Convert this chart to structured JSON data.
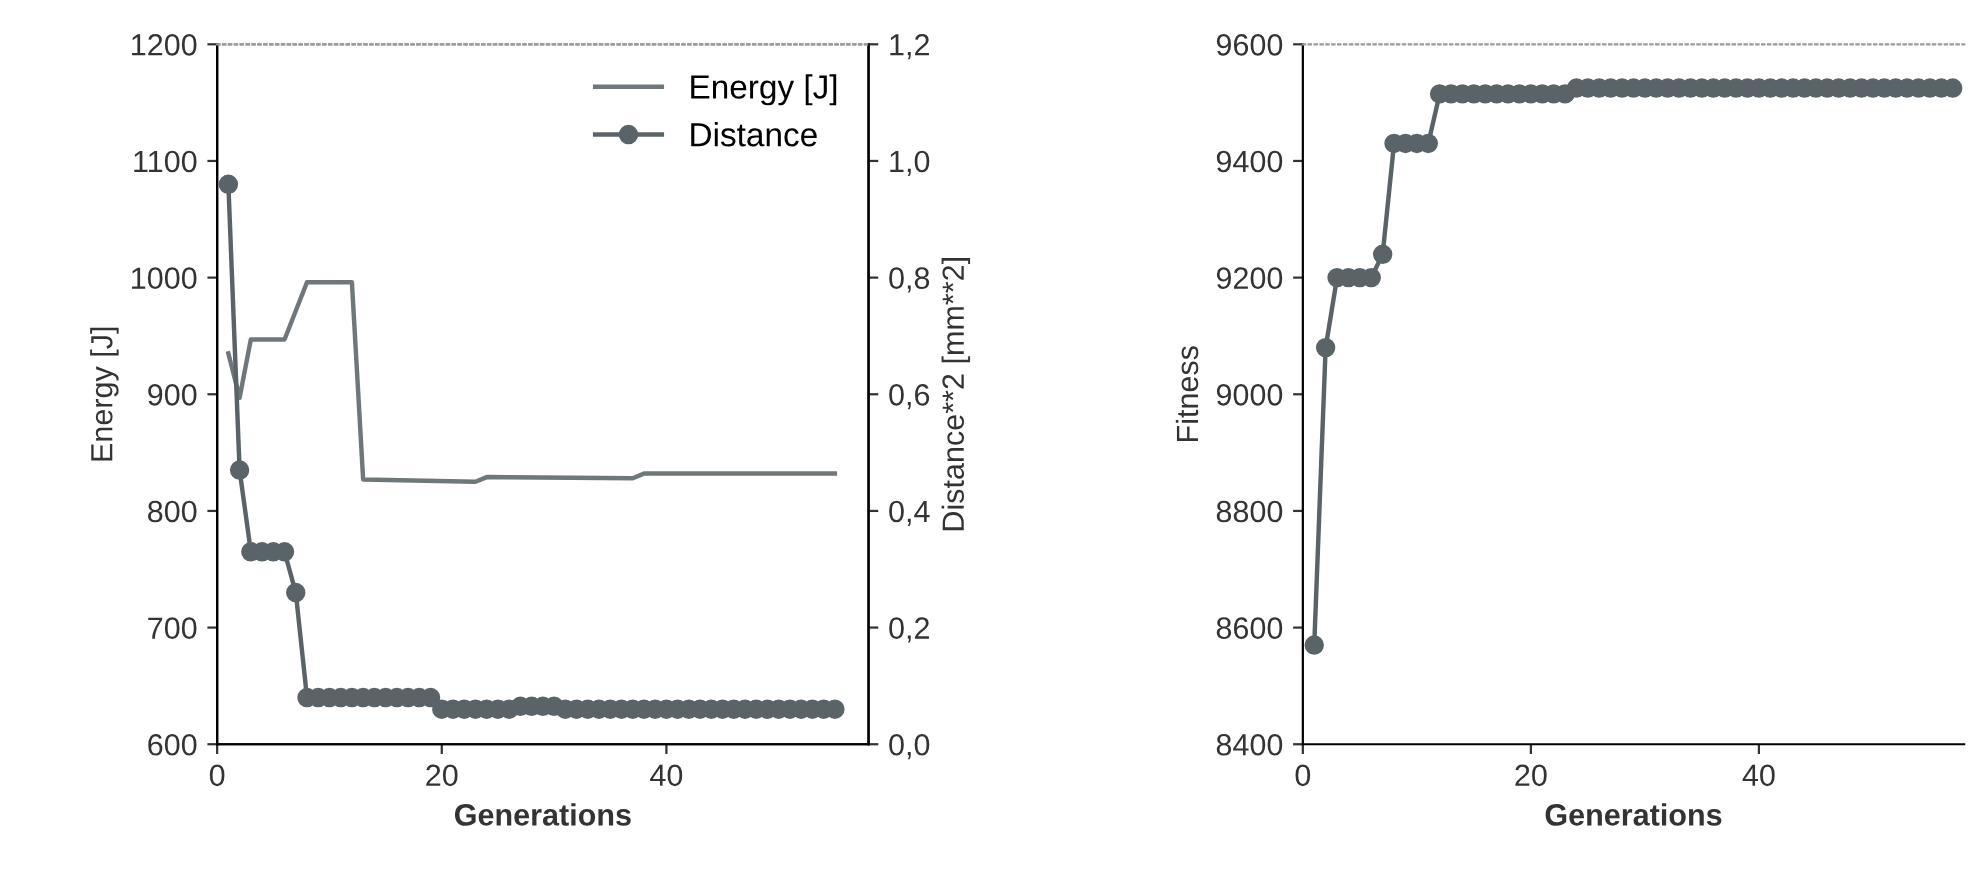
{
  "chart_data": [
    {
      "type": "line",
      "xlabel": "Generations",
      "ylabel": "Energy [J]",
      "y2label": "Distance**2 [mm**2]",
      "xlim": [
        0,
        58
      ],
      "xticks": [
        0,
        20,
        40
      ],
      "ylim": [
        600,
        1200
      ],
      "yticks": [
        600,
        700,
        800,
        900,
        1000,
        1100,
        1200
      ],
      "y2lim": [
        0,
        1.2
      ],
      "y2ticks": [
        {
          "value": 0,
          "label": "0,0"
        },
        {
          "value": 0.2,
          "label": "0,2"
        },
        {
          "value": 0.4,
          "label": "0,4"
        },
        {
          "value": 0.6,
          "label": "0,6"
        },
        {
          "value": 0.8,
          "label": "0,8"
        },
        {
          "value": 1.0,
          "label": "1,0"
        },
        {
          "value": 1.2,
          "label": "1,2"
        }
      ],
      "legend": "top right",
      "grid": false,
      "series": [
        {
          "name": "Energy [J]",
          "color": "#6f777b",
          "marker": "none",
          "x": [
            1,
            2,
            3,
            6,
            8,
            12,
            13,
            23,
            24,
            37,
            38,
            55
          ],
          "values": [
            935,
            897,
            947,
            947,
            996,
            996,
            827,
            825,
            829,
            828,
            832,
            832
          ]
        },
        {
          "name": "Distance",
          "color": "#5a6468",
          "marker": "circle",
          "axis": "y2",
          "x": [
            1,
            2,
            3,
            4,
            5,
            6,
            7,
            8,
            9,
            10,
            11,
            12,
            13,
            14,
            15,
            16,
            17,
            18,
            19,
            20,
            21,
            22,
            23,
            24,
            25,
            26,
            27,
            28,
            29,
            30,
            31,
            32,
            33,
            34,
            35,
            36,
            37,
            38,
            39,
            40,
            41,
            42,
            43,
            44,
            45,
            46,
            47,
            48,
            49,
            50,
            51,
            52,
            53,
            54,
            55
          ],
          "values": [
            0.96,
            0.47,
            0.33,
            0.33,
            0.33,
            0.33,
            0.26,
            0.08,
            0.08,
            0.08,
            0.08,
            0.08,
            0.08,
            0.08,
            0.08,
            0.08,
            0.08,
            0.08,
            0.08,
            0.06,
            0.06,
            0.06,
            0.06,
            0.06,
            0.06,
            0.06,
            0.065,
            0.065,
            0.065,
            0.065,
            0.06,
            0.06,
            0.06,
            0.06,
            0.06,
            0.06,
            0.06,
            0.06,
            0.06,
            0.06,
            0.06,
            0.06,
            0.06,
            0.06,
            0.06,
            0.06,
            0.06,
            0.06,
            0.06,
            0.06,
            0.06,
            0.06,
            0.06,
            0.06,
            0.06
          ]
        }
      ]
    },
    {
      "type": "line",
      "xlabel": "Generations",
      "ylabel": "Fitness",
      "xlim": [
        0,
        58
      ],
      "xticks": [
        0,
        20,
        40
      ],
      "ylim": [
        8400,
        9600
      ],
      "yticks": [
        8400,
        8600,
        8800,
        9000,
        9200,
        9400,
        9600
      ],
      "grid": false,
      "marker": "circle",
      "series": [
        {
          "color": "#5a6468",
          "x": [
            1,
            2,
            3,
            4,
            5,
            6,
            7,
            8,
            9,
            10,
            11,
            12,
            13,
            14,
            15,
            16,
            17,
            18,
            19,
            20,
            21,
            22,
            23,
            24,
            25,
            26,
            27,
            28,
            29,
            30,
            31,
            32,
            33,
            34,
            35,
            36,
            37,
            38,
            39,
            40,
            41,
            42,
            43,
            44,
            45,
            46,
            47,
            48,
            49,
            50,
            51,
            52,
            53,
            54,
            55,
            56,
            57
          ],
          "values": [
            8570,
            9080,
            9200,
            9200,
            9200,
            9200,
            9240,
            9430,
            9430,
            9430,
            9430,
            9515,
            9515,
            9515,
            9515,
            9515,
            9515,
            9515,
            9515,
            9515,
            9515,
            9515,
            9515,
            9525,
            9525,
            9525,
            9525,
            9525,
            9525,
            9525,
            9525,
            9525,
            9525,
            9525,
            9525,
            9525,
            9525,
            9525,
            9525,
            9525,
            9525,
            9525,
            9525,
            9525,
            9525,
            9525,
            9525,
            9525,
            9525,
            9525,
            9525,
            9525,
            9525,
            9525,
            9525,
            9525,
            9525
          ]
        }
      ]
    }
  ]
}
